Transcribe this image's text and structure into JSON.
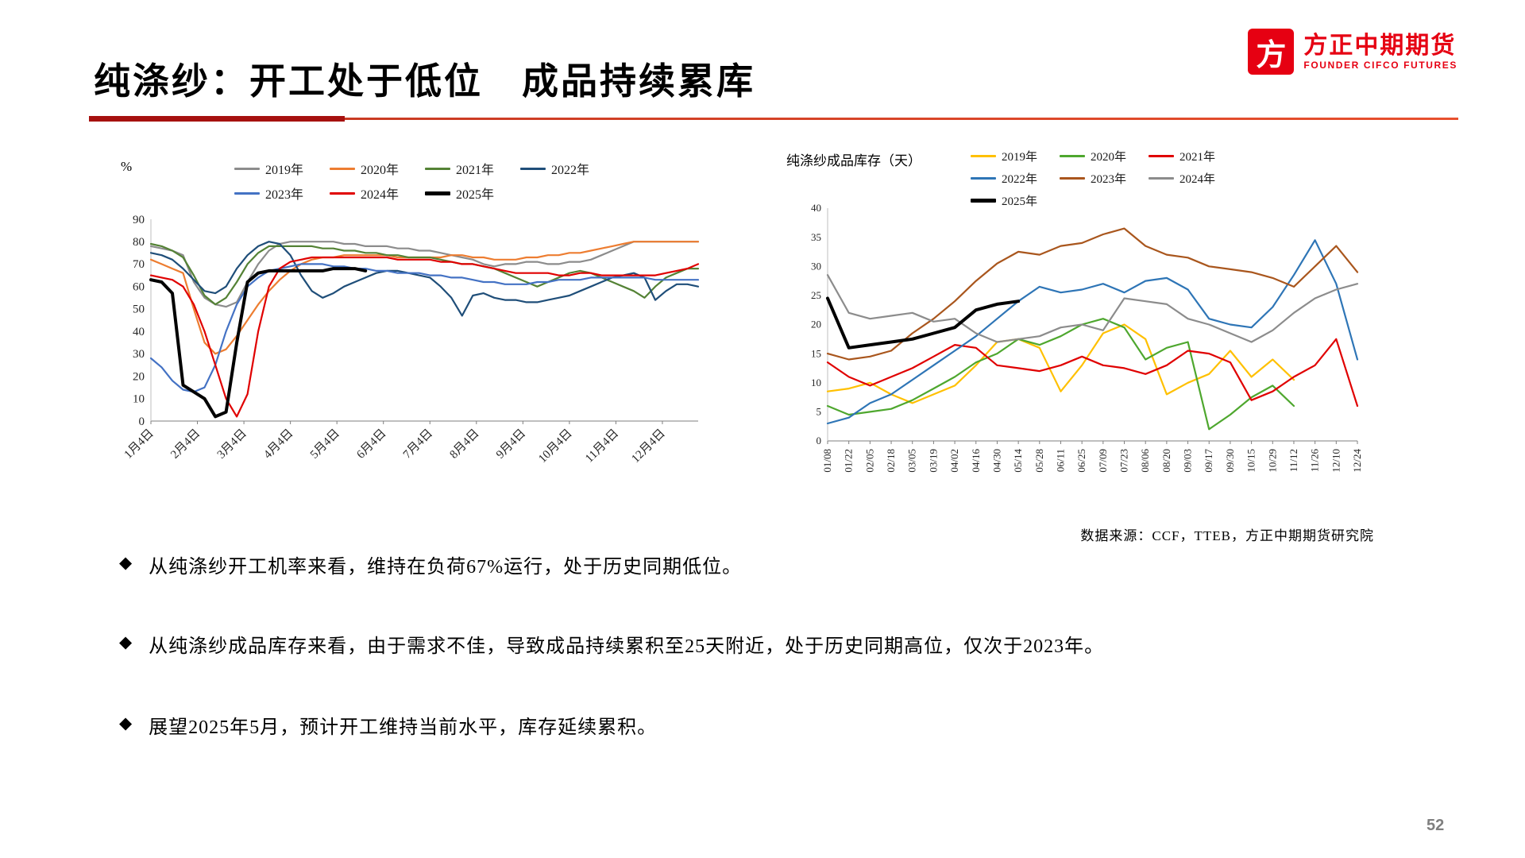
{
  "slide": {
    "title": "纯涤纱：开工处于低位　成品持续累库",
    "page_number": "52",
    "source_note": "数据来源：CCF，TTEB，方正中期期货研究院"
  },
  "logo": {
    "mark_char": "方",
    "brand_cn": "方正中期期货",
    "brand_en": "FOUNDER CIFCO FUTURES",
    "brand_color": "#E60012"
  },
  "bullets": [
    {
      "marker": "◆",
      "text": "从纯涤纱开工机率来看，维持在负荷67%运行，处于历史同期低位。"
    },
    {
      "marker": "◆",
      "text": "从纯涤纱成品库存来看，由于需求不佳，导致成品持续累积至25天附近，处于历史同期高位，仅次于2023年。"
    },
    {
      "marker": "◆",
      "text": "展望2025年5月，预计开工维持当前水平，库存延续累积。"
    }
  ],
  "chart_data": [
    {
      "name": "polyester-yarn-operating-rate",
      "type": "line",
      "title": "",
      "ylabel": "%",
      "ylim": [
        0,
        90
      ],
      "ystep": 10,
      "grid": false,
      "legend_position": "top",
      "x_label_rotate": 45,
      "x_labels": [
        "1月4日",
        "2月4日",
        "3月4日",
        "4月4日",
        "5月4日",
        "6月4日",
        "7月4日",
        "8月4日",
        "9月4日",
        "10月4日",
        "11月4日",
        "12月4日"
      ],
      "legend_rows": [
        [
          "2019年",
          "2020年",
          "2021年",
          "2022年"
        ],
        [
          "2023年",
          "2024年",
          "2025年"
        ]
      ],
      "series": [
        {
          "name": "2019年",
          "color": "#8C8C8C",
          "width": 2.2,
          "values": [
            78,
            77,
            76,
            74,
            62,
            55,
            52,
            51,
            53,
            62,
            70,
            76,
            79,
            80,
            80,
            80,
            80,
            80,
            79,
            79,
            78,
            78,
            78,
            77,
            77,
            76,
            76,
            75,
            74,
            73,
            72,
            70,
            69,
            70,
            70,
            71,
            71,
            70,
            70,
            71,
            71,
            72,
            74,
            76,
            78,
            80,
            80,
            80,
            80,
            80,
            80,
            80
          ]
        },
        {
          "name": "2020年",
          "color": "#ED7D31",
          "width": 2.2,
          "values": [
            72,
            70,
            68,
            66,
            50,
            35,
            30,
            32,
            38,
            45,
            52,
            58,
            63,
            67,
            70,
            72,
            73,
            73,
            74,
            74,
            74,
            74,
            74,
            73,
            73,
            73,
            73,
            73,
            74,
            74,
            73,
            73,
            72,
            72,
            72,
            73,
            73,
            74,
            74,
            75,
            75,
            76,
            77,
            78,
            79,
            80,
            80,
            80,
            80,
            80,
            80,
            80
          ]
        },
        {
          "name": "2021年",
          "color": "#548235",
          "width": 2.2,
          "values": [
            79,
            78,
            76,
            73,
            65,
            56,
            52,
            55,
            62,
            70,
            75,
            78,
            78,
            78,
            78,
            78,
            77,
            77,
            76,
            76,
            75,
            75,
            74,
            74,
            73,
            73,
            73,
            72,
            71,
            70,
            70,
            69,
            68,
            66,
            64,
            62,
            60,
            62,
            64,
            66,
            67,
            66,
            64,
            62,
            60,
            58,
            55,
            60,
            64,
            66,
            68,
            68
          ]
        },
        {
          "name": "2022年",
          "color": "#1F4E79",
          "width": 2.2,
          "values": [
            75,
            74,
            72,
            68,
            63,
            58,
            57,
            60,
            68,
            74,
            78,
            80,
            79,
            74,
            65,
            58,
            55,
            57,
            60,
            62,
            64,
            66,
            67,
            67,
            66,
            65,
            64,
            60,
            55,
            47,
            56,
            57,
            55,
            54,
            54,
            53,
            53,
            54,
            55,
            56,
            58,
            60,
            62,
            64,
            65,
            66,
            64,
            54,
            58,
            61,
            61,
            60
          ]
        },
        {
          "name": "2023年",
          "color": "#4472C4",
          "width": 2.2,
          "values": [
            28,
            24,
            18,
            14,
            13,
            15,
            25,
            40,
            52,
            60,
            64,
            67,
            68,
            69,
            70,
            70,
            70,
            69,
            69,
            68,
            68,
            67,
            67,
            66,
            66,
            66,
            65,
            65,
            64,
            64,
            63,
            62,
            62,
            61,
            61,
            61,
            62,
            62,
            63,
            63,
            63,
            64,
            64,
            64,
            64,
            64,
            64,
            63,
            63,
            63,
            63,
            63
          ]
        },
        {
          "name": "2024年",
          "color": "#E00000",
          "width": 2.2,
          "values": [
            65,
            64,
            63,
            60,
            52,
            40,
            25,
            10,
            2,
            12,
            40,
            60,
            68,
            71,
            72,
            73,
            73,
            73,
            73,
            73,
            73,
            73,
            73,
            72,
            72,
            72,
            72,
            71,
            71,
            70,
            70,
            69,
            68,
            67,
            66,
            66,
            66,
            66,
            65,
            65,
            66,
            66,
            65,
            65,
            65,
            65,
            65,
            65,
            66,
            67,
            68,
            70
          ]
        },
        {
          "name": "2025年",
          "color": "#000000",
          "width": 4,
          "values": [
            63,
            62,
            57,
            16,
            13,
            10,
            2,
            4,
            35,
            62,
            66,
            67,
            67,
            67,
            67,
            67,
            67,
            68,
            68,
            68,
            67
          ]
        }
      ]
    },
    {
      "name": "polyester-yarn-finished-goods-inventory",
      "type": "line",
      "title": "纯涤纱成品库存（天）",
      "ylabel": "天",
      "ylim": [
        0,
        40
      ],
      "ystep": 5,
      "grid": false,
      "legend_position": "top",
      "x_label_rotate": 90,
      "x_labels": [
        "01/08",
        "01/22",
        "02/05",
        "02/18",
        "03/05",
        "03/19",
        "04/02",
        "04/16",
        "04/30",
        "05/14",
        "05/28",
        "06/11",
        "06/25",
        "07/09",
        "07/23",
        "08/06",
        "08/20",
        "09/03",
        "09/17",
        "09/30",
        "10/15",
        "10/29",
        "11/12",
        "11/26",
        "12/10",
        "12/24"
      ],
      "legend_rows": [
        [
          "2019年",
          "2020年",
          "2021年"
        ],
        [
          "2022年",
          "2023年",
          "2024年"
        ],
        [
          "2025年"
        ]
      ],
      "series": [
        {
          "name": "2019年",
          "color": "#FFC000",
          "width": 2.2,
          "values": [
            8.5,
            9,
            10,
            8,
            6.5,
            8,
            9.5,
            13,
            17,
            17.5,
            16,
            8.5,
            13,
            18.5,
            20,
            17.5,
            8,
            10,
            11.5,
            15.5,
            11,
            14,
            10.5
          ]
        },
        {
          "name": "2020年",
          "color": "#4EA72E",
          "width": 2.2,
          "values": [
            6,
            4.5,
            5,
            5.5,
            7,
            9,
            11,
            13.5,
            15,
            17.5,
            16.5,
            18,
            20,
            21,
            19.5,
            14,
            16,
            17,
            2,
            4.5,
            7.5,
            9.5,
            6
          ]
        },
        {
          "name": "2021年",
          "color": "#E00000",
          "width": 2.2,
          "values": [
            13.5,
            11,
            9.5,
            11,
            12.5,
            14.5,
            16.5,
            16,
            13,
            12.5,
            12,
            13,
            14.5,
            13,
            12.5,
            11.5,
            13,
            15.5,
            15,
            13.5,
            7,
            8.5,
            11,
            13,
            17.5,
            6
          ]
        },
        {
          "name": "2022年",
          "color": "#2E75B6",
          "width": 2.2,
          "values": [
            3,
            4,
            6.5,
            8,
            10.5,
            13,
            15.5,
            18,
            21,
            24,
            26.5,
            25.5,
            26,
            27,
            25.5,
            27.5,
            28,
            26,
            21,
            20,
            19.5,
            23,
            28.5,
            34.5,
            27,
            14
          ]
        },
        {
          "name": "2023年",
          "color": "#A9561D",
          "width": 2.2,
          "values": [
            15,
            14,
            14.5,
            15.5,
            18.5,
            21,
            24,
            27.5,
            30.5,
            32.5,
            32,
            33.5,
            34,
            35.5,
            36.5,
            33.5,
            32,
            31.5,
            30,
            29.5,
            29,
            28,
            26.5,
            30,
            33.5,
            29
          ]
        },
        {
          "name": "2024年",
          "color": "#8C8C8C",
          "width": 2.2,
          "values": [
            28.5,
            22,
            21,
            21.5,
            22,
            20.5,
            21,
            18.5,
            17,
            17.5,
            18,
            19.5,
            20,
            19,
            24.5,
            24,
            23.5,
            21,
            20,
            18.5,
            17,
            19,
            22,
            24.5,
            26,
            27
          ]
        },
        {
          "name": "2025年",
          "color": "#000000",
          "width": 4,
          "values": [
            24.5,
            16,
            16.5,
            17,
            17.5,
            18.5,
            19.5,
            22.5,
            23.5,
            24
          ]
        }
      ]
    }
  ]
}
